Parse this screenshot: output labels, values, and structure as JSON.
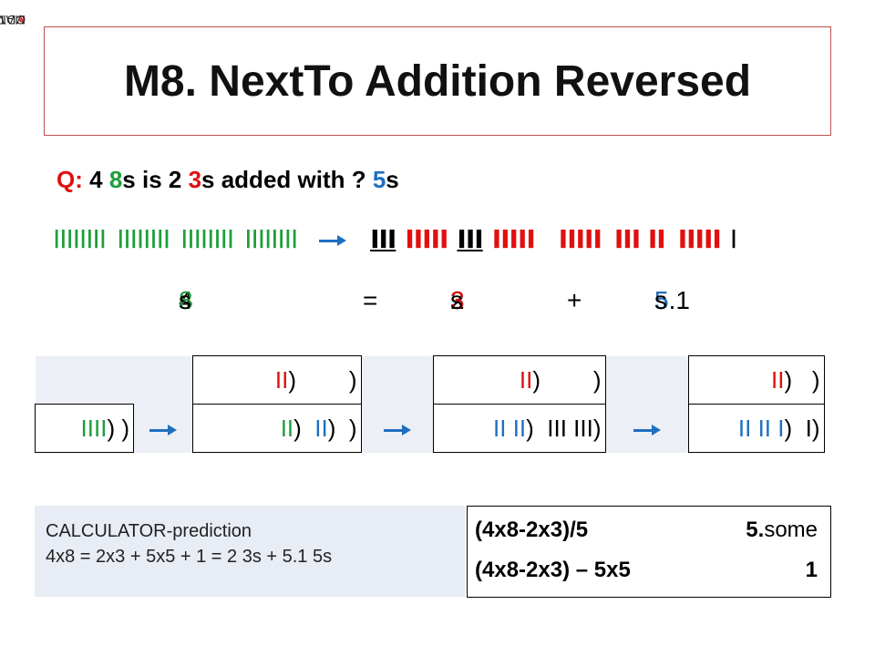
{
  "brand": {
    "pre": "MATH",
    "mid": "e",
    "post": "CDMY"
  },
  "title": "M8. NextTo Addition Reversed",
  "question": {
    "q_label": "Q:",
    "p1": " 4 ",
    "p2": "8",
    "p3": "s is 2 ",
    "p4": "3",
    "p5": "s added with ? ",
    "p6": "5",
    "p7": "s"
  },
  "sticks": {
    "eights": [
      "IIIIIIII",
      "IIIIIIII",
      "IIIIIIII",
      "IIIIIIII"
    ],
    "threes_a": "III",
    "fives_a": "IIIII",
    "threes_b": "III",
    "fives_b": "IIIII",
    "fives_c": "IIIII",
    "fives_d": "III II",
    "fives_e": "IIIII",
    "one": "I"
  },
  "equation": {
    "left_num": "4 ",
    "left_col": "8",
    "left_s": "s",
    "eq": "=",
    "mid_num": "2 ",
    "mid_col": "3",
    "mid_s": "s",
    "plus": "+",
    "right_num": "5.1 ",
    "right_col": "5",
    "right_s": "s"
  },
  "bundles": {
    "start_bottom": {
      "a": "IIII",
      "b": ")",
      "c": " )"
    },
    "col2_top": {
      "a": "II",
      "b": ")",
      "c": "        )"
    },
    "col2_bottom": {
      "a": "II",
      "b": ")",
      "c": "  ",
      "d": "II",
      "e": ")",
      "f": "  )"
    },
    "col3_top": {
      "a": "II",
      "b": ")",
      "c": "        )"
    },
    "col3_bottom": {
      "a": "II II",
      "b": ")",
      "c": "  III III)"
    },
    "col4_top": {
      "a": "II",
      "b": ")",
      "c": "   )"
    },
    "col4_bottom": {
      "a": "II II I",
      "b": ")",
      "c": "  I)"
    }
  },
  "calc_note": {
    "line1": "CALCULATOR-prediction",
    "line2": "4x8 = 2x3 + 5x5 + 1 = 2 3s + 5.1 5s"
  },
  "calc_table": {
    "row1_expr": "(4x8-2x3)/5",
    "row1_res_bold": "5.",
    "row1_res_light": "some",
    "row2_expr": "(4x8-2x3) – 5x5",
    "row2_res": "1"
  },
  "colors": {
    "green": "#1e9e3a",
    "red": "#e01010",
    "blue": "#1f6fc0",
    "frame": "#c0504d"
  }
}
